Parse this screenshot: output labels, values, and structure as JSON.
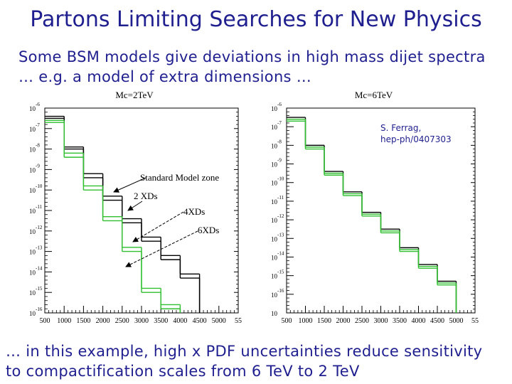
{
  "slide": {
    "title": "Partons Limiting Searches for New Physics",
    "subtitle_line1": "Some BSM models give deviations in high mass dijet spectra",
    "subtitle_line2": "… e.g. a model of extra dimensions …",
    "bottom_line1": "… in this example, high x PDF uncertainties reduce sensitivity",
    "bottom_line2": "to compactification scales from 6 TeV to 2 TeV"
  },
  "colors": {
    "text": "#1f1f8f",
    "sm": "#000000",
    "xd": "#2fbf2f",
    "axis": "#000000"
  },
  "chart_data": [
    {
      "type": "line",
      "title": "Mc=2TeV",
      "x_tick_labels": [
        "500",
        "1000",
        "1500",
        "2000",
        "2500",
        "3000",
        "3500",
        "4000",
        "4500",
        "5000",
        "55"
      ],
      "y_tick_labels": [
        {
          "base": "10",
          "exp": "-6"
        },
        {
          "base": "10",
          "exp": "-7"
        },
        {
          "base": "10",
          "exp": "-8"
        },
        {
          "base": "10",
          "exp": "-9"
        },
        {
          "base": "10",
          "exp": "-10"
        },
        {
          "base": "10",
          "exp": "-11"
        },
        {
          "base": "10",
          "exp": "-12"
        },
        {
          "base": "10",
          "exp": "-13"
        },
        {
          "base": "10",
          "exp": "-14"
        },
        {
          "base": "10",
          "exp": "-15"
        },
        {
          "base": "10",
          "exp": "-16"
        }
      ],
      "xlim": [
        500,
        5500
      ],
      "ylog_exp": [
        -6,
        -16
      ],
      "x_edges": [
        500,
        1000,
        1500,
        2000,
        2500,
        3000,
        3500,
        4000,
        4500
      ],
      "series": [
        {
          "color": "#000000",
          "values": [
            -6.4,
            -7.9,
            -9.2,
            -10.3,
            -11.4,
            -12.3,
            -13.2,
            -14.1
          ]
        },
        {
          "color": "#000000",
          "values": [
            -6.5,
            -8.0,
            -9.4,
            -10.5,
            -11.6,
            -12.5,
            -13.4,
            -14.3
          ]
        },
        {
          "color": "#2fbf2f",
          "values": [
            -6.6,
            -8.2,
            -9.8,
            -11.3,
            -12.8,
            -14.8,
            -15.6
          ]
        },
        {
          "color": "#2fbf2f",
          "values": [
            -6.7,
            -8.4,
            -10.0,
            -11.5,
            -13.0,
            -15.0,
            -15.8
          ]
        }
      ],
      "annotations": [
        "Standard Model zone",
        "2 XDs",
        "4XDs",
        "6XDs"
      ]
    },
    {
      "type": "line",
      "title": "Mc=6TeV",
      "annotation": "S. Ferrag,\nhep-ph/0407303",
      "x_tick_labels": [
        "500",
        "1000",
        "1500",
        "2000",
        "2500",
        "3000",
        "3500",
        "4000",
        "4500",
        "5000",
        "55"
      ],
      "y_tick_labels": [
        {
          "base": "10",
          "exp": "-6"
        },
        {
          "base": "10",
          "exp": "-7"
        },
        {
          "base": "10",
          "exp": "-8"
        },
        {
          "base": "10",
          "exp": "-9"
        },
        {
          "base": "10",
          "exp": "-10"
        },
        {
          "base": "10",
          "exp": "-11"
        },
        {
          "base": "10",
          "exp": "-12"
        },
        {
          "base": "10",
          "exp": "-13"
        },
        {
          "base": "10",
          "exp": "-14"
        },
        {
          "base": "10",
          "exp": "-15"
        },
        {
          "base": "10",
          "exp": "-16"
        },
        {
          "base": "10",
          "exp": ""
        }
      ],
      "xlim": [
        500,
        5500
      ],
      "ylog_exp": [
        -6,
        -17
      ],
      "x_edges": [
        500,
        1000,
        1500,
        2000,
        2500,
        3000,
        3500,
        4000,
        4500,
        5000
      ],
      "series": [
        {
          "color": "#000000",
          "values": [
            -6.5,
            -8.0,
            -9.4,
            -10.5,
            -11.6,
            -12.5,
            -13.5,
            -14.4,
            -15.3
          ]
        },
        {
          "color": "#2fbf2f",
          "values": [
            -6.6,
            -8.1,
            -9.5,
            -10.6,
            -11.7,
            -12.6,
            -13.6,
            -14.5,
            -15.4
          ]
        },
        {
          "color": "#2fbf2f",
          "values": [
            -6.7,
            -8.2,
            -9.6,
            -10.7,
            -11.8,
            -12.7,
            -13.7,
            -14.6,
            -15.5
          ]
        }
      ]
    }
  ]
}
